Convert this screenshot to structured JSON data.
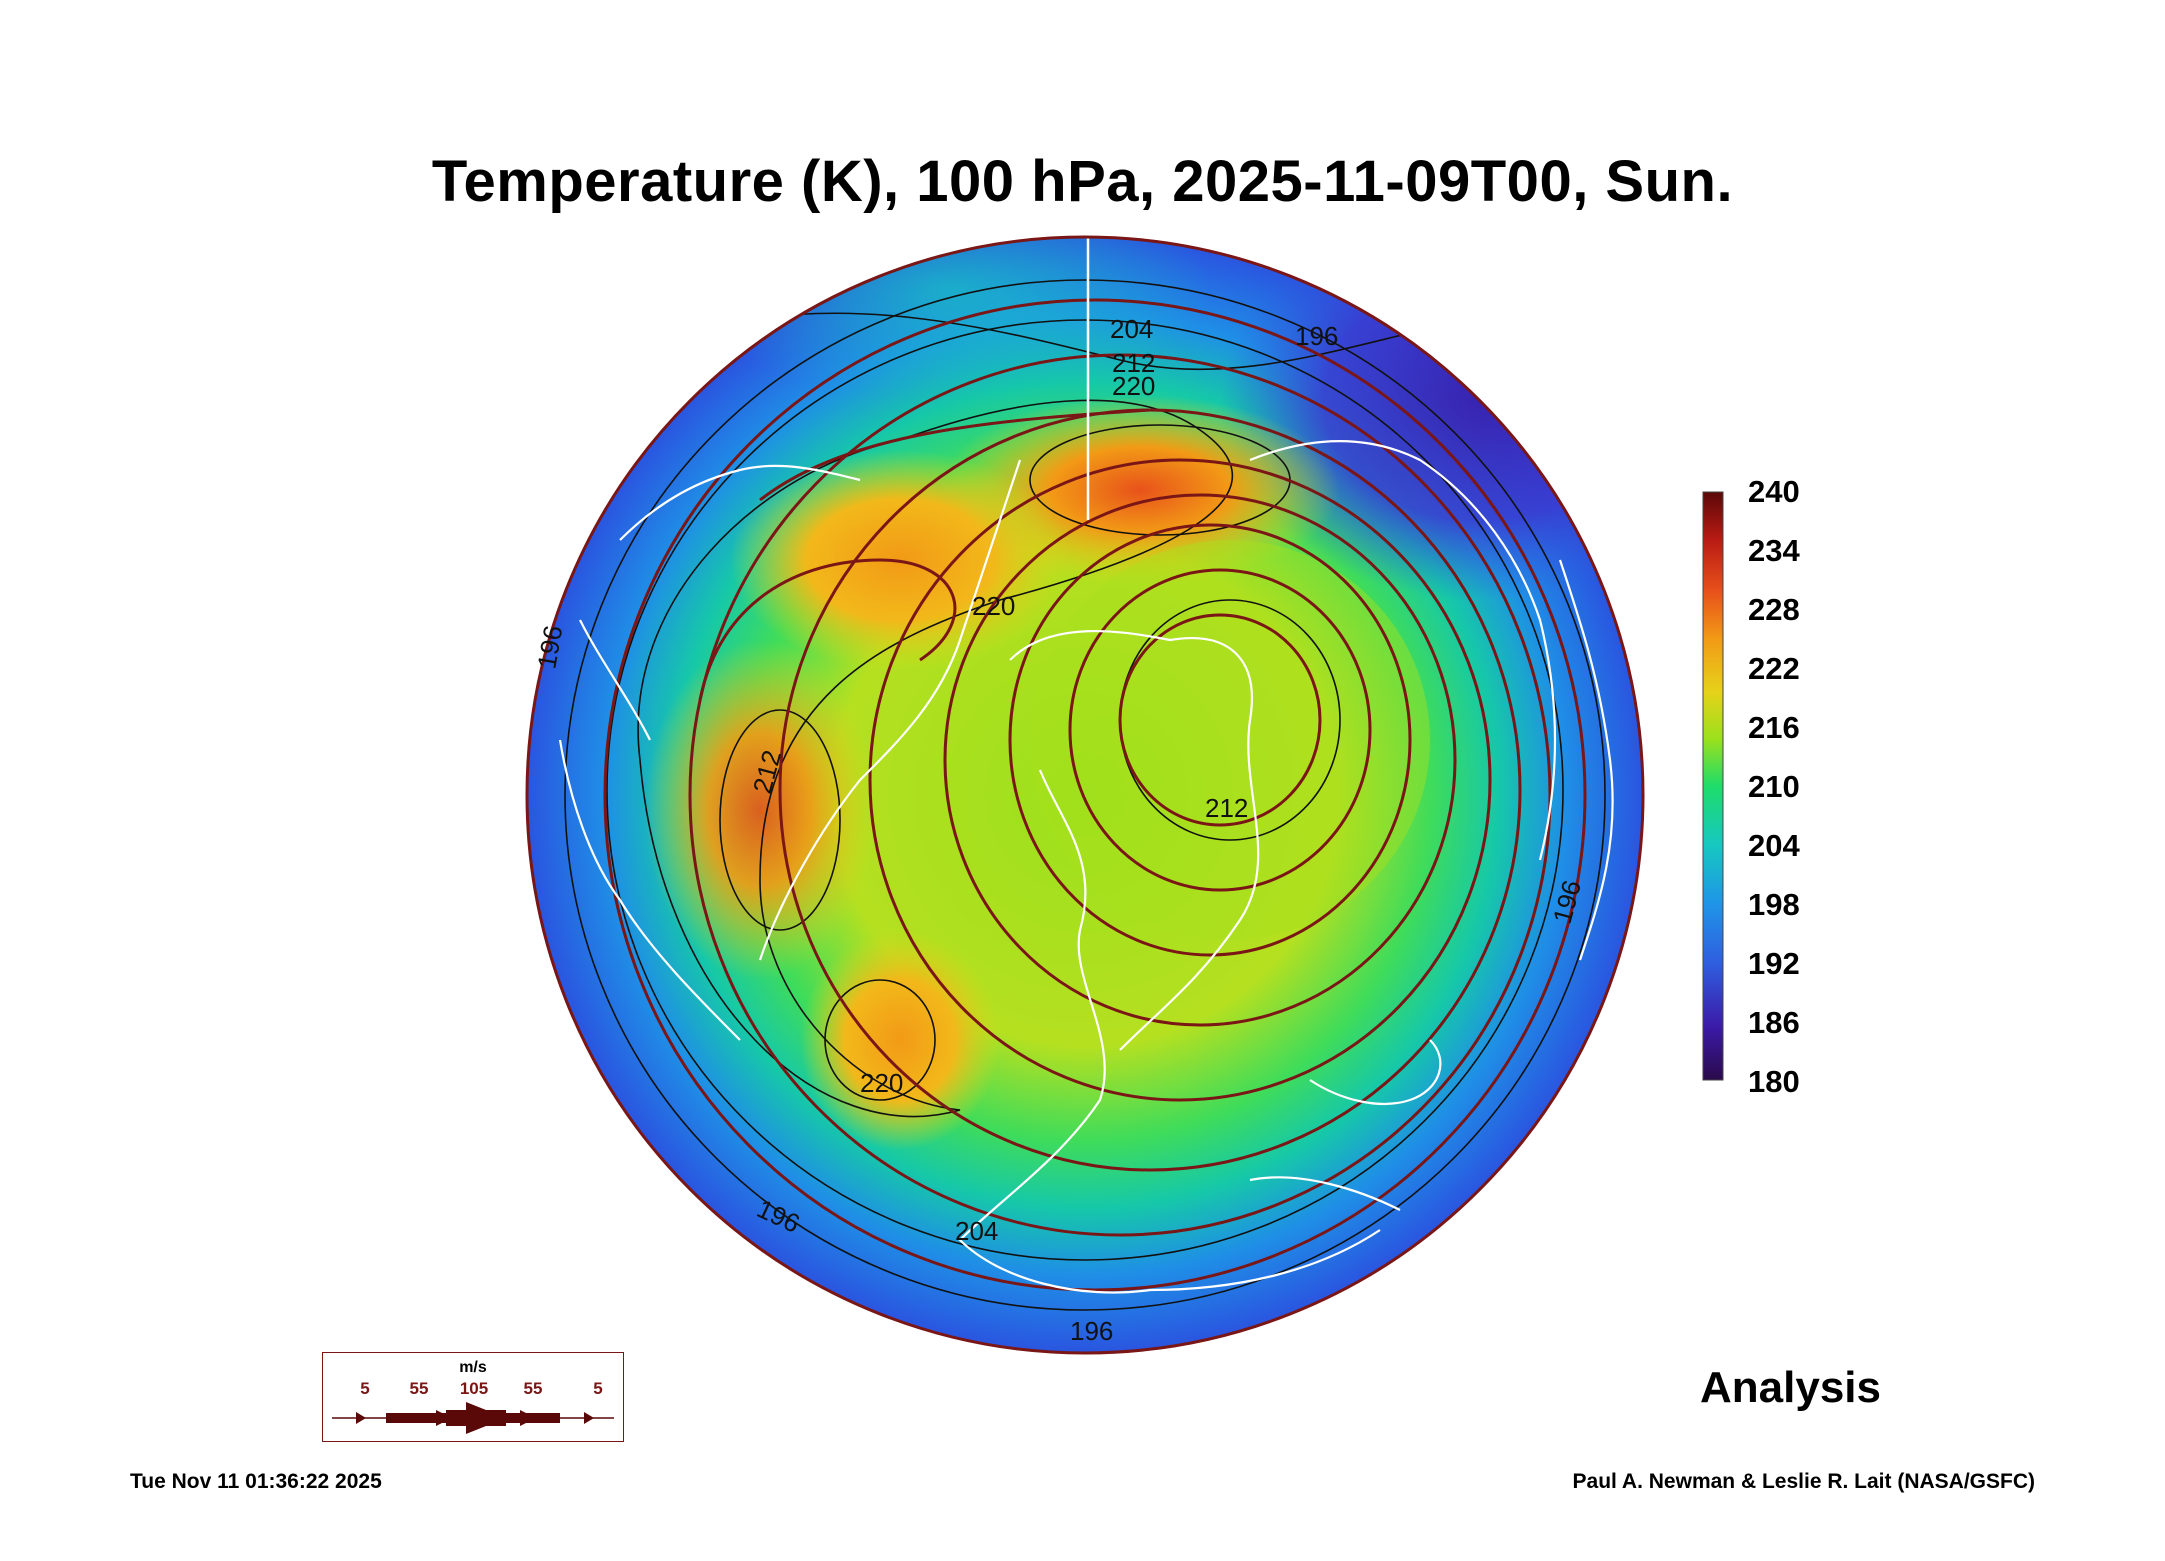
{
  "title": "Temperature (K), 100 hPa, 2025-11-09T00, Sun.",
  "colorbar": {
    "labels": [
      "240",
      "234",
      "228",
      "222",
      "216",
      "210",
      "204",
      "198",
      "192",
      "186",
      "180"
    ],
    "min": 180,
    "max": 240,
    "colors": [
      "#2a0a4a",
      "#3b1aa8",
      "#2f5fe0",
      "#1f95e8",
      "#16c8c0",
      "#1edc6a",
      "#9be01c",
      "#e6d21a",
      "#f29a16",
      "#e8521a",
      "#b81a14",
      "#5a0808"
    ]
  },
  "contour_labels": [
    "204",
    "212",
    "220",
    "196",
    "220",
    "196",
    "212",
    "220",
    "212",
    "196",
    "204",
    "196",
    "196"
  ],
  "wind_legend": {
    "unit": "m/s",
    "values": [
      "5",
      "55",
      "105",
      "55",
      "5"
    ],
    "color": "#7a1616"
  },
  "analysis_label": "Analysis",
  "timestamp": "Tue Nov 11 01:36:22 2025",
  "credit": "Paul A. Newman & Leslie R. Lait (NASA/GSFC)"
}
